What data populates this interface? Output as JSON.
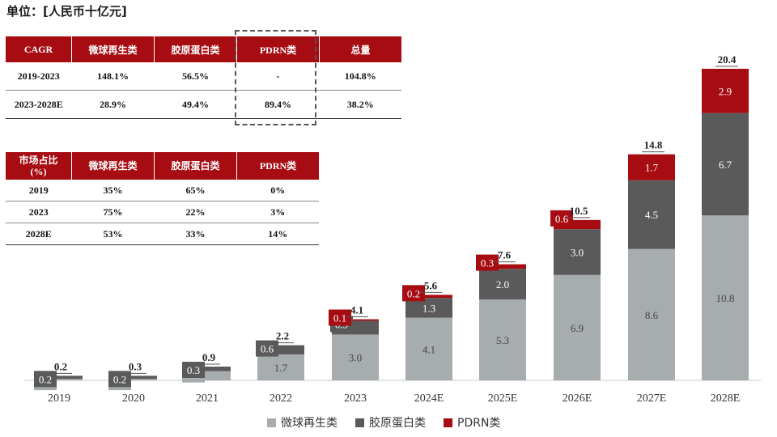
{
  "unit_label": "单位：[人民币十亿元]",
  "colors": {
    "microsphere": "#a7acaf",
    "collagen": "#5a5a5a",
    "pdrn": "#a60c12",
    "header_bg": "#a60c12"
  },
  "cagr_table": {
    "headers": [
      "CAGR",
      "微球再生类",
      "胶原蛋白类",
      "PDRN类",
      "总量"
    ],
    "rows": [
      [
        "2019-2023",
        "148.1%",
        "56.5%",
        "-",
        "104.8%"
      ],
      [
        "2023-2028E",
        "28.9%",
        "49.4%",
        "89.4%",
        "38.2%"
      ]
    ]
  },
  "share_table": {
    "headers": [
      "市场占比\n(%)",
      "微球再生类",
      "胶原蛋白类",
      "PDRN类"
    ],
    "rows": [
      [
        "2019",
        "35%",
        "65%",
        "0%"
      ],
      [
        "2023",
        "75%",
        "22%",
        "3%"
      ],
      [
        "2028E",
        "53%",
        "33%",
        "14%"
      ]
    ]
  },
  "chart_data": {
    "type": "bar",
    "stacked": true,
    "categories": [
      "2019",
      "2020",
      "2021",
      "2022",
      "2023",
      "2024E",
      "2025E",
      "2026E",
      "2027E",
      "2028E"
    ],
    "series": [
      {
        "name": "微球再生类",
        "values": [
          0.1,
          0.1,
          0.6,
          1.7,
          3.0,
          4.1,
          5.3,
          6.9,
          8.6,
          10.8
        ],
        "labels": [
          "0.1",
          "0.1",
          "0.6",
          "1.7",
          "3.0",
          "4.1",
          "5.3",
          "6.9",
          "8.6",
          "10.8"
        ]
      },
      {
        "name": "胶原蛋白类",
        "values": [
          0.2,
          0.2,
          0.3,
          0.6,
          0.9,
          1.3,
          2.0,
          3.0,
          4.5,
          6.7
        ],
        "labels": [
          "0.2",
          "0.2",
          "0.3",
          "0.6",
          "0.9",
          "1.3",
          "2.0",
          "3.0",
          "4.5",
          "6.7"
        ]
      },
      {
        "name": "PDRN类",
        "values": [
          0,
          0,
          0,
          0,
          0.1,
          0.2,
          0.3,
          0.6,
          1.7,
          2.9
        ],
        "labels": [
          "",
          "",
          "",
          "",
          "0.1",
          "0.2",
          "0.3",
          "0.6",
          "1.7",
          "2.9"
        ]
      }
    ],
    "totals": [
      "0.2",
      "0.3",
      "0.9",
      "2.2",
      "4.1",
      "5.6",
      "7.6",
      "10.5",
      "14.8",
      "20.4"
    ],
    "ylim": [
      0,
      20.4
    ],
    "grid": false,
    "legend": "bottom"
  }
}
